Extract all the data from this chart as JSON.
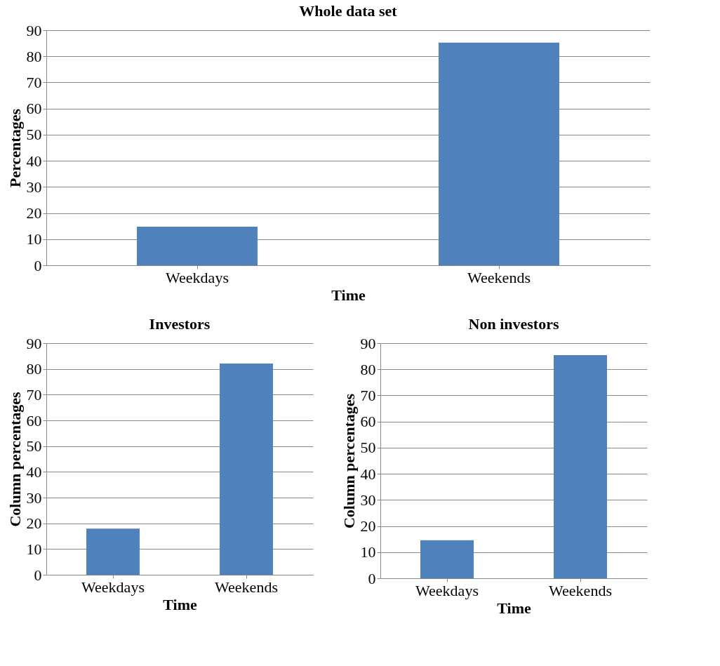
{
  "chart_data": [
    {
      "type": "bar",
      "title": "Whole data set",
      "xlabel": "Time",
      "ylabel": "Percentages",
      "categories": [
        "Weekdays",
        "Weekends"
      ],
      "values": [
        14.8,
        85.2
      ],
      "color": "#4f81bd",
      "ylim": [
        0,
        90
      ],
      "yticks": [
        0,
        10,
        20,
        30,
        40,
        50,
        60,
        70,
        80,
        90
      ],
      "grid": "y"
    },
    {
      "type": "bar",
      "title": "Investors",
      "xlabel": "Time",
      "ylabel": "Column percentages",
      "categories": [
        "Weekdays",
        "Weekends"
      ],
      "values": [
        17.9,
        82.1
      ],
      "color": "#4f81bd",
      "ylim": [
        0,
        90
      ],
      "yticks": [
        0,
        10,
        20,
        30,
        40,
        50,
        60,
        70,
        80,
        90
      ],
      "grid": "y"
    },
    {
      "type": "bar",
      "title": "Non investors",
      "xlabel": "Time",
      "ylabel": "Column percentages",
      "categories": [
        "Weekdays",
        "Weekends"
      ],
      "values": [
        14.6,
        85.4
      ],
      "color": "#4f81bd",
      "ylim": [
        0,
        90
      ],
      "yticks": [
        0,
        10,
        20,
        30,
        40,
        50,
        60,
        70,
        80,
        90
      ],
      "grid": "y"
    }
  ]
}
